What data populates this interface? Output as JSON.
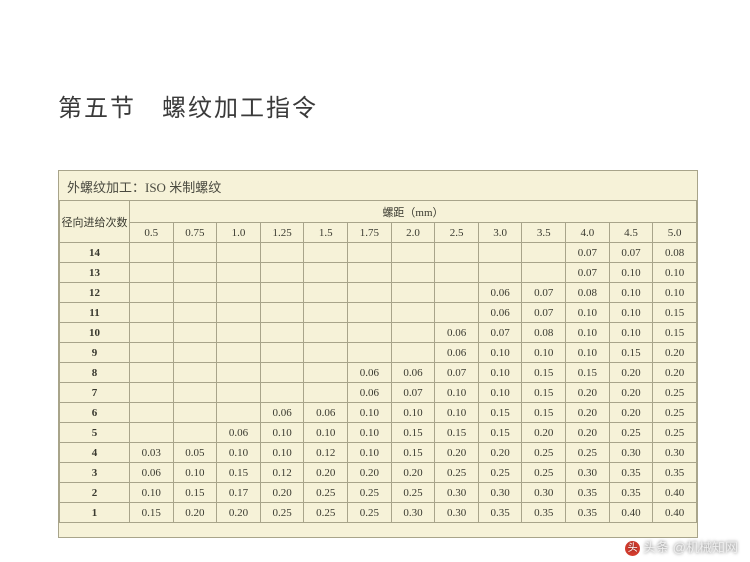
{
  "title": "第五节　螺纹加工指令",
  "table": {
    "subtitle": "外螺纹加工：ISO 米制螺纹",
    "rowHeaderLabel": "径向进给次数",
    "pitchHeader": "螺距（mm）",
    "pitches": [
      "0.5",
      "0.75",
      "1.0",
      "1.25",
      "1.5",
      "1.75",
      "2.0",
      "2.5",
      "3.0",
      "3.5",
      "4.0",
      "4.5",
      "5.0"
    ],
    "rows": [
      {
        "n": "14",
        "v": [
          "",
          "",
          "",
          "",
          "",
          "",
          "",
          "",
          "",
          "",
          "0.07",
          "0.07",
          "0.08"
        ]
      },
      {
        "n": "13",
        "v": [
          "",
          "",
          "",
          "",
          "",
          "",
          "",
          "",
          "",
          "",
          "0.07",
          "0.10",
          "0.10"
        ]
      },
      {
        "n": "12",
        "v": [
          "",
          "",
          "",
          "",
          "",
          "",
          "",
          "",
          "0.06",
          "0.07",
          "0.08",
          "0.10",
          "0.10"
        ]
      },
      {
        "n": "11",
        "v": [
          "",
          "",
          "",
          "",
          "",
          "",
          "",
          "",
          "0.06",
          "0.07",
          "0.10",
          "0.10",
          "0.15"
        ]
      },
      {
        "n": "10",
        "v": [
          "",
          "",
          "",
          "",
          "",
          "",
          "",
          "0.06",
          "0.07",
          "0.08",
          "0.10",
          "0.10",
          "0.15"
        ]
      },
      {
        "n": "9",
        "v": [
          "",
          "",
          "",
          "",
          "",
          "",
          "",
          "0.06",
          "0.10",
          "0.10",
          "0.10",
          "0.15",
          "0.20"
        ]
      },
      {
        "n": "8",
        "v": [
          "",
          "",
          "",
          "",
          "",
          "0.06",
          "0.06",
          "0.07",
          "0.10",
          "0.15",
          "0.15",
          "0.20",
          "0.20"
        ]
      },
      {
        "n": "7",
        "v": [
          "",
          "",
          "",
          "",
          "",
          "0.06",
          "0.07",
          "0.10",
          "0.10",
          "0.15",
          "0.20",
          "0.20",
          "0.25"
        ]
      },
      {
        "n": "6",
        "v": [
          "",
          "",
          "",
          "0.06",
          "0.06",
          "0.10",
          "0.10",
          "0.10",
          "0.15",
          "0.15",
          "0.20",
          "0.20",
          "0.25"
        ]
      },
      {
        "n": "5",
        "v": [
          "",
          "",
          "0.06",
          "0.10",
          "0.10",
          "0.10",
          "0.15",
          "0.15",
          "0.15",
          "0.20",
          "0.20",
          "0.25",
          "0.25"
        ]
      },
      {
        "n": "4",
        "v": [
          "0.03",
          "0.05",
          "0.10",
          "0.10",
          "0.12",
          "0.10",
          "0.15",
          "0.20",
          "0.20",
          "0.25",
          "0.25",
          "0.30",
          "0.30"
        ]
      },
      {
        "n": "3",
        "v": [
          "0.06",
          "0.10",
          "0.15",
          "0.12",
          "0.20",
          "0.20",
          "0.20",
          "0.25",
          "0.25",
          "0.25",
          "0.30",
          "0.35",
          "0.35"
        ]
      },
      {
        "n": "2",
        "v": [
          "0.10",
          "0.15",
          "0.17",
          "0.20",
          "0.25",
          "0.25",
          "0.25",
          "0.30",
          "0.30",
          "0.30",
          "0.35",
          "0.35",
          "0.40"
        ]
      },
      {
        "n": "1",
        "v": [
          "0.15",
          "0.20",
          "0.20",
          "0.25",
          "0.25",
          "0.25",
          "0.30",
          "0.30",
          "0.35",
          "0.35",
          "0.35",
          "0.40",
          "0.40"
        ]
      }
    ]
  },
  "watermark": {
    "prefix": "头条",
    "handle": "@机械知网"
  }
}
